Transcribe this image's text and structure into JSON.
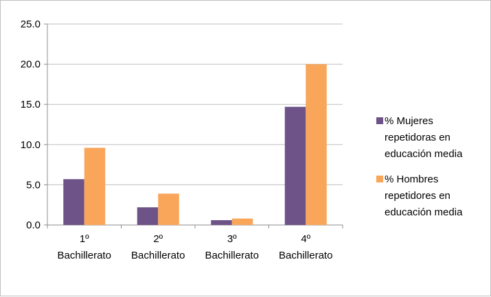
{
  "chart_data": {
    "type": "bar",
    "categories": [
      [
        "1º",
        "Bachillerato"
      ],
      [
        "2º",
        "Bachillerato"
      ],
      [
        "3º",
        "Bachillerato"
      ],
      [
        "4º",
        "Bachillerato"
      ]
    ],
    "series": [
      {
        "name": "% Mujeres repetidoras en educación media",
        "name_lines": [
          "% Mujeres",
          "repetidoras en",
          "educación media"
        ],
        "color": "#6d5388",
        "values": [
          5.7,
          2.2,
          0.6,
          14.7
        ]
      },
      {
        "name": "% Hombres repetidores en educación media",
        "name_lines": [
          "% Hombres",
          "repetidores en",
          "educación media"
        ],
        "color": "#f9a55a",
        "values": [
          9.6,
          3.9,
          0.8,
          20.0
        ]
      }
    ],
    "yticks": [
      "0.0",
      "5.0",
      "10.0",
      "15.0",
      "20.0",
      "25.0"
    ],
    "ylim": [
      0,
      25
    ],
    "grid": true,
    "legend_position": "right"
  }
}
